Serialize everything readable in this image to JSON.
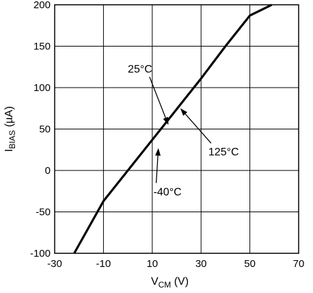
{
  "chart_data": {
    "type": "line",
    "xlabel": {
      "main": "V",
      "sub": "CM",
      "unit": " (V)"
    },
    "ylabel": {
      "main": "I",
      "sub": "BIAS",
      "unit": " (µA)"
    },
    "xlim": [
      -30,
      70
    ],
    "ylim": [
      -100,
      200
    ],
    "x_ticks": [
      -30,
      -10,
      10,
      30,
      50,
      70
    ],
    "y_ticks": [
      -100,
      -50,
      0,
      50,
      100,
      150,
      200
    ],
    "x_tick_labels": [
      "-30",
      "-10",
      "10",
      "30",
      "50",
      "70"
    ],
    "y_tick_labels": [
      "-100",
      "-50",
      "0",
      "50",
      "100",
      "150",
      "200"
    ],
    "grid": true,
    "series": [
      {
        "color": "#000000",
        "x": [
          -22.0,
          -10.0,
          0.0,
          10.0,
          20.0,
          30.0,
          40.0,
          50.0,
          59.0
        ],
        "y": [
          -100.0,
          -37.0,
          0.0,
          37.0,
          74.0,
          111.0,
          150.0,
          187.0,
          200.0
        ]
      }
    ],
    "annotations": [
      {
        "text": "25°C",
        "anchor": "end",
        "text_x": 10.0,
        "text_y": 118.0,
        "arrow_to_x": 16.6,
        "arrow_to_y": 55.0
      },
      {
        "text": "125°C",
        "anchor": "start",
        "text_x": 33.0,
        "text_y": 18.0,
        "arrow_to_x": 21.5,
        "arrow_to_y": 75.0
      },
      {
        "text": "-40°C",
        "anchor": "start",
        "text_x": 10.5,
        "text_y": -30.0,
        "arrow_to_x": 12.5,
        "arrow_to_y": 27.0
      }
    ]
  }
}
